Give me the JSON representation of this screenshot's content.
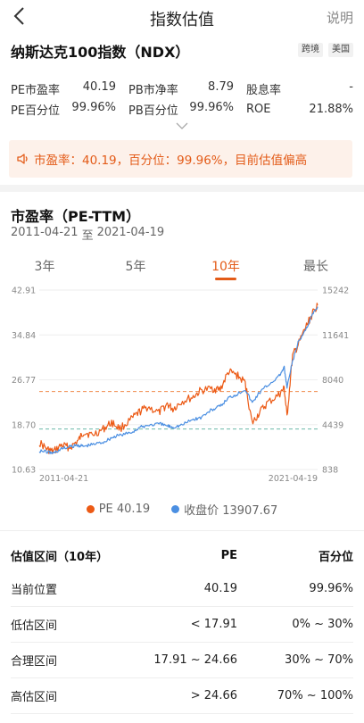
{
  "nav": {
    "title": "指数估值",
    "help": "说明"
  },
  "index": {
    "name": "纳斯达克100指数（NDX）",
    "tags": [
      "跨境",
      "美国"
    ]
  },
  "stats": [
    [
      {
        "label": "PE市盈率",
        "value": "40.19"
      },
      {
        "label": "PB市净率",
        "value": "8.79"
      },
      {
        "label": "股息率",
        "value": "-"
      }
    ],
    [
      {
        "label": "PE百分位",
        "value": "99.96%"
      },
      {
        "label": "PB百分位",
        "value": "99.96%"
      },
      {
        "label": "ROE",
        "value": "21.88%"
      }
    ]
  ],
  "alert": {
    "text": "市盈率：40.19，百分位：99.96%，目前估值偏高",
    "color": "#e35b18"
  },
  "section": {
    "title": "市盈率（PE-TTM）",
    "start": "2011-04-21",
    "sep": "至",
    "end": "2021-04-19"
  },
  "tabs": [
    {
      "label": "3年",
      "active": false
    },
    {
      "label": "5年",
      "active": false
    },
    {
      "label": "10年",
      "active": true
    },
    {
      "label": "最长",
      "active": false
    }
  ],
  "chart_data": {
    "type": "line",
    "x_start": "2011-04-21",
    "x_end": "2021-04-19",
    "left_axis": {
      "ticks": [
        "42.91",
        "34.84",
        "26.77",
        "18.70",
        "10.63"
      ],
      "min": 10.63,
      "max": 42.91
    },
    "right_axis": {
      "ticks": [
        "15242",
        "11641",
        "8040",
        "4439",
        "838"
      ],
      "min": 838,
      "max": 15242
    },
    "x_tick_labels": [
      "2011-04-21",
      "2021-04-19"
    ],
    "reference_lines": [
      {
        "value": 24.66,
        "color": "#f08a4b",
        "style": "dashed"
      },
      {
        "value": 17.91,
        "color": "#6bb8a8",
        "style": "dashed"
      }
    ],
    "series": [
      {
        "name": "PE",
        "axis": "left",
        "color": "#ec5a15",
        "years": [
          2011.3,
          2011.6,
          2011.8,
          2012.1,
          2012.4,
          2012.7,
          2012.9,
          2013.2,
          2013.6,
          2013.9,
          2014.2,
          2014.6,
          2014.9,
          2015.2,
          2015.6,
          2015.9,
          2016.1,
          2016.4,
          2016.8,
          2017.1,
          2017.5,
          2017.8,
          2018.1,
          2018.4,
          2018.7,
          2018.95,
          2019.2,
          2019.5,
          2019.9,
          2020.1,
          2020.2,
          2020.4,
          2020.6,
          2020.9,
          2021.1,
          2021.3
        ],
        "values": [
          15.5,
          14.2,
          13.8,
          15.0,
          14.6,
          15.8,
          17.4,
          16.8,
          17.9,
          19.1,
          18.0,
          19.6,
          21.0,
          21.9,
          20.8,
          22.4,
          21.5,
          22.8,
          23.6,
          24.8,
          25.2,
          25.0,
          28.2,
          27.6,
          26.2,
          18.9,
          20.8,
          22.6,
          24.0,
          25.2,
          20.2,
          31.0,
          33.0,
          36.5,
          38.5,
          40.19
        ]
      },
      {
        "name": "收盘价",
        "axis": "right",
        "color": "#4b8fe2",
        "years": [
          2011.3,
          2011.6,
          2011.8,
          2012.1,
          2012.4,
          2012.7,
          2012.9,
          2013.2,
          2013.6,
          2013.9,
          2014.2,
          2014.6,
          2014.9,
          2015.2,
          2015.6,
          2015.9,
          2016.1,
          2016.4,
          2016.8,
          2017.1,
          2017.5,
          2017.8,
          2018.1,
          2018.4,
          2018.7,
          2018.95,
          2019.2,
          2019.5,
          2019.9,
          2020.1,
          2020.2,
          2020.4,
          2020.6,
          2020.9,
          2021.1,
          2021.3
        ],
        "values": [
          2350,
          2250,
          2150,
          2500,
          2650,
          2800,
          2700,
          2850,
          3050,
          3400,
          3600,
          3800,
          4200,
          4400,
          4500,
          4350,
          4250,
          4400,
          4850,
          5000,
          5650,
          5900,
          6600,
          6900,
          7300,
          6200,
          7000,
          7600,
          8300,
          9000,
          7400,
          9500,
          11000,
          12200,
          13200,
          13907.67
        ]
      }
    ]
  },
  "legend": {
    "pe_label": "PE 40.19",
    "close_label": "收盘价 13907.67"
  },
  "table": {
    "headers": [
      "估值区间（10年）",
      "PE",
      "百分位"
    ],
    "rows": [
      [
        "当前位置",
        "40.19",
        "99.96%"
      ],
      [
        "低估区间",
        "< 17.91",
        "0% ~ 30%"
      ],
      [
        "合理区间",
        "17.91 ~ 24.66",
        "30% ~ 70%"
      ],
      [
        "高估区间",
        "> 24.66",
        "70% ~ 100%"
      ]
    ]
  },
  "colors": {
    "accent": "#e35b18",
    "pe": "#ec5a15",
    "close": "#4b8fe2"
  }
}
